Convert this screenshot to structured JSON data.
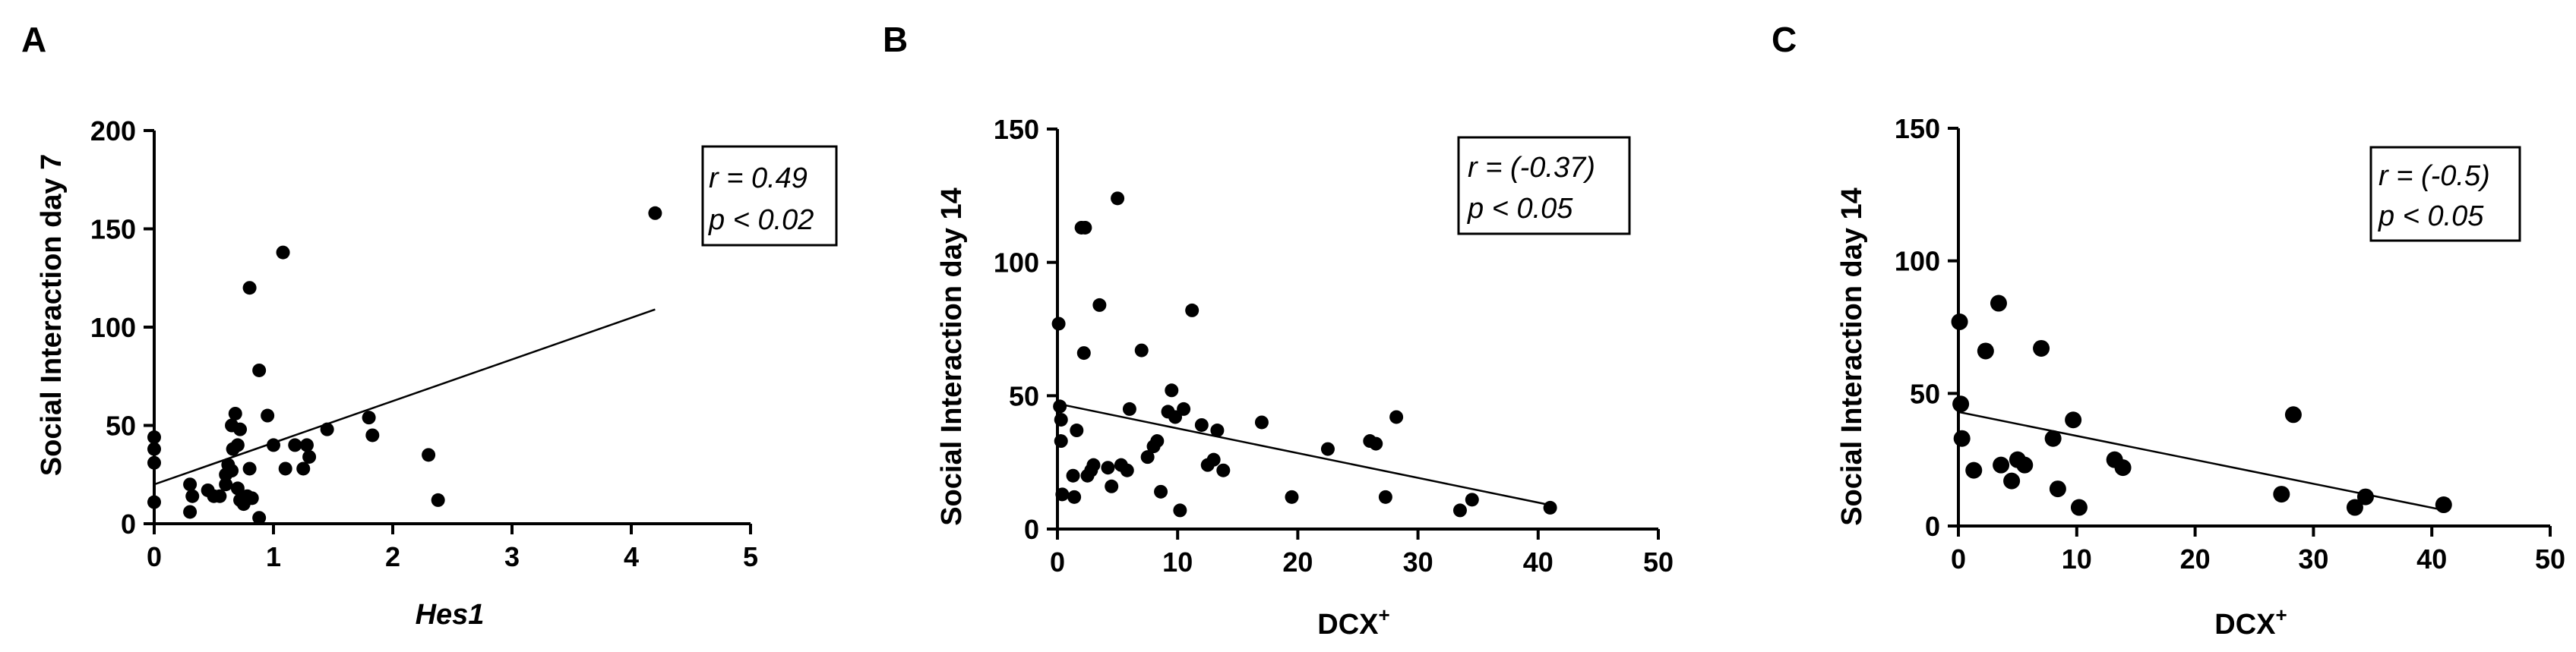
{
  "chart_data": [
    {
      "type": "scatter",
      "panel_label": "A",
      "xlabel": "Hes1",
      "ylabel": "Social Interaction day 7",
      "xlim": [
        0,
        5
      ],
      "ylim": [
        0,
        200
      ],
      "xticks": [
        0,
        1,
        2,
        3,
        4,
        5
      ],
      "yticks": [
        0,
        50,
        100,
        150,
        200
      ],
      "annotation": [
        "r = 0.49",
        "p < 0.02"
      ],
      "regression": {
        "x": [
          0,
          4.2
        ],
        "y": [
          20,
          109
        ]
      },
      "points": [
        [
          0.0,
          44
        ],
        [
          0.0,
          38
        ],
        [
          0.0,
          31
        ],
        [
          0.0,
          11
        ],
        [
          0.3,
          20
        ],
        [
          0.32,
          14
        ],
        [
          0.3,
          6
        ],
        [
          0.45,
          17
        ],
        [
          0.5,
          14
        ],
        [
          0.55,
          14
        ],
        [
          0.6,
          20
        ],
        [
          0.6,
          25
        ],
        [
          0.62,
          30
        ],
        [
          0.65,
          27
        ],
        [
          0.65,
          50
        ],
        [
          0.68,
          56
        ],
        [
          0.66,
          38
        ],
        [
          0.7,
          40
        ],
        [
          0.72,
          48
        ],
        [
          0.7,
          18
        ],
        [
          0.72,
          12
        ],
        [
          0.75,
          10
        ],
        [
          0.78,
          14
        ],
        [
          0.8,
          28
        ],
        [
          0.8,
          120
        ],
        [
          0.82,
          13
        ],
        [
          0.88,
          3
        ],
        [
          0.88,
          78
        ],
        [
          0.95,
          55
        ],
        [
          1.0,
          40
        ],
        [
          1.08,
          138
        ],
        [
          1.1,
          28
        ],
        [
          1.18,
          40
        ],
        [
          1.25,
          28
        ],
        [
          1.28,
          40
        ],
        [
          1.3,
          34
        ],
        [
          1.45,
          48
        ],
        [
          1.8,
          54
        ],
        [
          1.83,
          45
        ],
        [
          2.3,
          35
        ],
        [
          2.38,
          12
        ],
        [
          4.2,
          158
        ]
      ]
    },
    {
      "type": "scatter",
      "panel_label": "B",
      "xlabel": "DCX",
      "xlabel_sup": "+",
      "ylabel": "Social Interaction day 14",
      "xlim": [
        0,
        50
      ],
      "ylim": [
        0,
        150
      ],
      "xticks": [
        0,
        10,
        20,
        30,
        40,
        50
      ],
      "yticks": [
        0,
        50,
        100,
        150
      ],
      "annotation": [
        "r = (-0.37)",
        "p < 0.05"
      ],
      "regression": {
        "x": [
          0,
          41
        ],
        "y": [
          47,
          9
        ]
      },
      "points": [
        [
          0.1,
          77
        ],
        [
          0.2,
          46
        ],
        [
          0.3,
          41
        ],
        [
          0.3,
          33
        ],
        [
          0.4,
          13
        ],
        [
          1.3,
          20
        ],
        [
          1.4,
          12
        ],
        [
          1.6,
          37
        ],
        [
          2.0,
          113
        ],
        [
          2.3,
          113
        ],
        [
          2.2,
          66
        ],
        [
          2.5,
          20
        ],
        [
          2.8,
          22
        ],
        [
          3.0,
          24
        ],
        [
          3.5,
          84
        ],
        [
          4.2,
          23
        ],
        [
          4.5,
          16
        ],
        [
          5.0,
          124
        ],
        [
          5.3,
          24
        ],
        [
          5.8,
          22
        ],
        [
          6.0,
          45
        ],
        [
          7.0,
          67
        ],
        [
          7.5,
          27
        ],
        [
          8.0,
          31
        ],
        [
          8.3,
          33
        ],
        [
          8.6,
          14
        ],
        [
          9.2,
          44
        ],
        [
          9.5,
          52
        ],
        [
          9.8,
          42
        ],
        [
          10.2,
          7
        ],
        [
          10.5,
          45
        ],
        [
          11.2,
          82
        ],
        [
          12.0,
          39
        ],
        [
          12.5,
          24
        ],
        [
          13.3,
          37
        ],
        [
          13.0,
          26
        ],
        [
          13.8,
          22
        ],
        [
          17.0,
          40
        ],
        [
          19.5,
          12
        ],
        [
          22.5,
          30
        ],
        [
          26.0,
          33
        ],
        [
          26.5,
          32
        ],
        [
          27.3,
          12
        ],
        [
          28.2,
          42
        ],
        [
          33.5,
          7
        ],
        [
          34.5,
          11
        ],
        [
          41.0,
          8
        ]
      ]
    },
    {
      "type": "scatter",
      "panel_label": "C",
      "xlabel": "DCX",
      "xlabel_sup": "+",
      "ylabel": "Social Interaction day 14",
      "xlim": [
        0,
        50
      ],
      "ylim": [
        0,
        150
      ],
      "xticks": [
        0,
        10,
        20,
        30,
        40,
        50
      ],
      "yticks": [
        0,
        50,
        100,
        150
      ],
      "annotation": [
        "r = (-0.5)",
        "p < 0.05"
      ],
      "regression": {
        "x": [
          0,
          41
        ],
        "y": [
          43,
          6
        ]
      },
      "points": [
        [
          0.1,
          77
        ],
        [
          0.2,
          46
        ],
        [
          0.3,
          33
        ],
        [
          1.3,
          21
        ],
        [
          2.3,
          66
        ],
        [
          3.4,
          84
        ],
        [
          3.6,
          23
        ],
        [
          4.5,
          17
        ],
        [
          5.0,
          25
        ],
        [
          5.6,
          23
        ],
        [
          7.0,
          67
        ],
        [
          8.0,
          33
        ],
        [
          8.4,
          14
        ],
        [
          9.7,
          40
        ],
        [
          10.2,
          7
        ],
        [
          13.2,
          25
        ],
        [
          13.9,
          22
        ],
        [
          27.3,
          12
        ],
        [
          28.3,
          42
        ],
        [
          33.5,
          7
        ],
        [
          34.4,
          11
        ],
        [
          41.0,
          8
        ]
      ]
    }
  ]
}
